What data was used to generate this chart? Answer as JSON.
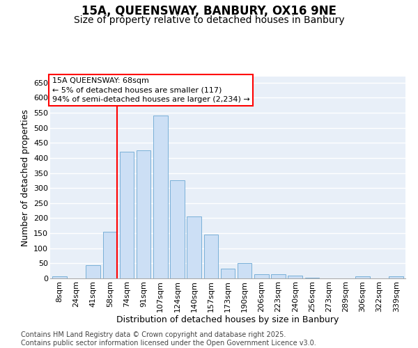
{
  "title": "15A, QUEENSWAY, BANBURY, OX16 9NE",
  "subtitle": "Size of property relative to detached houses in Banbury",
  "xlabel": "Distribution of detached houses by size in Banbury",
  "ylabel": "Number of detached properties",
  "categories": [
    "8sqm",
    "24sqm",
    "41sqm",
    "58sqm",
    "74sqm",
    "91sqm",
    "107sqm",
    "124sqm",
    "140sqm",
    "157sqm",
    "173sqm",
    "190sqm",
    "206sqm",
    "223sqm",
    "240sqm",
    "256sqm",
    "273sqm",
    "289sqm",
    "306sqm",
    "322sqm",
    "339sqm"
  ],
  "values": [
    8,
    0,
    45,
    155,
    420,
    425,
    540,
    325,
    205,
    145,
    33,
    50,
    14,
    13,
    10,
    3,
    0,
    0,
    6,
    0,
    6
  ],
  "bar_color": "#ccdff5",
  "bar_edge_color": "#7ab0d8",
  "red_line_index": 3,
  "annotation_line1": "15A QUEENSWAY: 68sqm",
  "annotation_line2": "← 5% of detached houses are smaller (117)",
  "annotation_line3": "94% of semi-detached houses are larger (2,234) →",
  "ylim": [
    0,
    670
  ],
  "yticks": [
    0,
    50,
    100,
    150,
    200,
    250,
    300,
    350,
    400,
    450,
    500,
    550,
    600,
    650
  ],
  "bg_color": "#e8eff8",
  "grid_color": "#ffffff",
  "outer_bg": "#ffffff",
  "footer": "Contains HM Land Registry data © Crown copyright and database right 2025.\nContains public sector information licensed under the Open Government Licence v3.0.",
  "title_fontsize": 12,
  "subtitle_fontsize": 10,
  "ylabel_fontsize": 9,
  "xlabel_fontsize": 9,
  "tick_fontsize": 8,
  "annot_fontsize": 8,
  "footer_fontsize": 7
}
